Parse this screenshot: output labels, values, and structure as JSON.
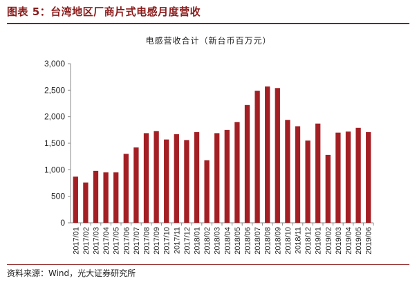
{
  "figure_title": "图表 5：台湾地区厂商片式电感月度营收",
  "source": "资料来源：Wind，光大证券研究所",
  "colors": {
    "bar": "#a31f24",
    "title": "#8b1a1a",
    "axis": "#888888"
  },
  "chart_data": {
    "type": "bar",
    "title": "电感营收合计（新台币百万元）",
    "xlabel": "",
    "ylabel": "",
    "ylim": [
      0,
      3000
    ],
    "yticks": [
      0,
      500,
      1000,
      1500,
      2000,
      2500,
      3000
    ],
    "ytick_labels": [
      "0",
      "500",
      "1,000",
      "1,500",
      "2,000",
      "2,500",
      "3,000"
    ],
    "grid": false,
    "categories": [
      "2017/01",
      "2017/02",
      "2017/03",
      "2017/04",
      "2017/05",
      "2017/06",
      "2017/07",
      "2017/08",
      "2017/09",
      "2017/10",
      "2017/11",
      "2017/12",
      "2018/01",
      "2018/02",
      "2018/03",
      "2018/04",
      "2018/05",
      "2018/06",
      "2018/07",
      "2018/08",
      "2018/09",
      "2018/10",
      "2018/11",
      "2018/12",
      "2019/01",
      "2019/02",
      "2019/03",
      "2019/04",
      "2019/05",
      "2019/06"
    ],
    "values": [
      870,
      760,
      980,
      950,
      950,
      1300,
      1420,
      1690,
      1730,
      1570,
      1670,
      1560,
      1710,
      1180,
      1690,
      1750,
      1900,
      2220,
      2490,
      2570,
      2540,
      1940,
      1820,
      1550,
      1870,
      1280,
      1700,
      1720,
      1790,
      1710
    ]
  }
}
